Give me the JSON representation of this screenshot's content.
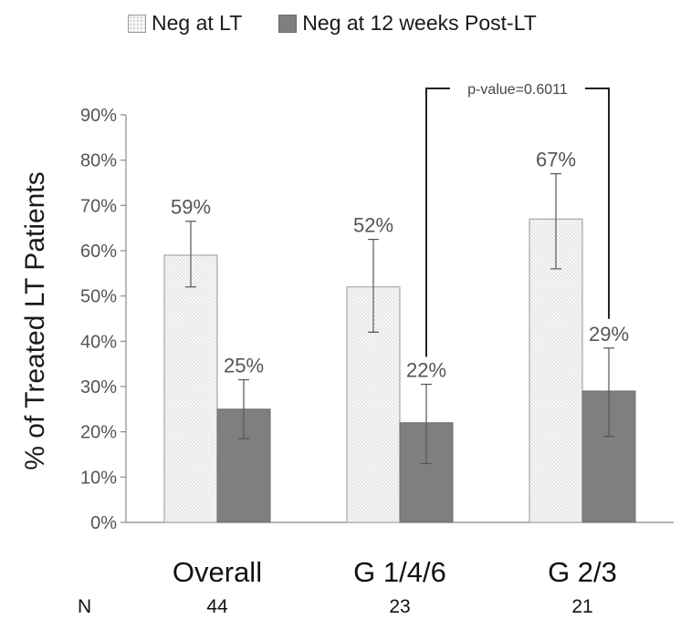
{
  "chart_data": {
    "type": "bar",
    "categories": [
      "Overall",
      "G 1/4/6",
      "G 2/3"
    ],
    "n_label": "N",
    "n_values": [
      "44",
      "23",
      "21"
    ],
    "series": [
      {
        "name": "Neg at LT",
        "values": [
          59,
          52,
          67
        ],
        "data_labels": [
          "59%",
          "52%",
          "67%"
        ],
        "error_low": [
          52,
          42,
          56
        ],
        "error_high": [
          66.5,
          62.5,
          77
        ],
        "color": "#f4f4f4"
      },
      {
        "name": "Neg at 12 weeks Post-LT",
        "values": [
          25,
          22,
          29
        ],
        "data_labels": [
          "25%",
          "22%",
          "29%"
        ],
        "error_low": [
          18.5,
          13,
          19
        ],
        "error_high": [
          31.5,
          30.5,
          38.5
        ],
        "color": "#7f7f7f"
      }
    ],
    "ylabel": "% of Treated LT Patients",
    "ylim": [
      0,
      90
    ],
    "yticks": [
      0,
      10,
      20,
      30,
      40,
      50,
      60,
      70,
      80,
      90
    ],
    "ytick_labels": [
      "0%",
      "10%",
      "20%",
      "30%",
      "40%",
      "50%",
      "60%",
      "70%",
      "80%",
      "90%"
    ],
    "legend_position": "top",
    "grid": false,
    "annotation": {
      "text": "p-value=0.6011",
      "from": {
        "category": 1,
        "series": 1
      },
      "to": {
        "category": 2,
        "series": 1
      }
    }
  }
}
